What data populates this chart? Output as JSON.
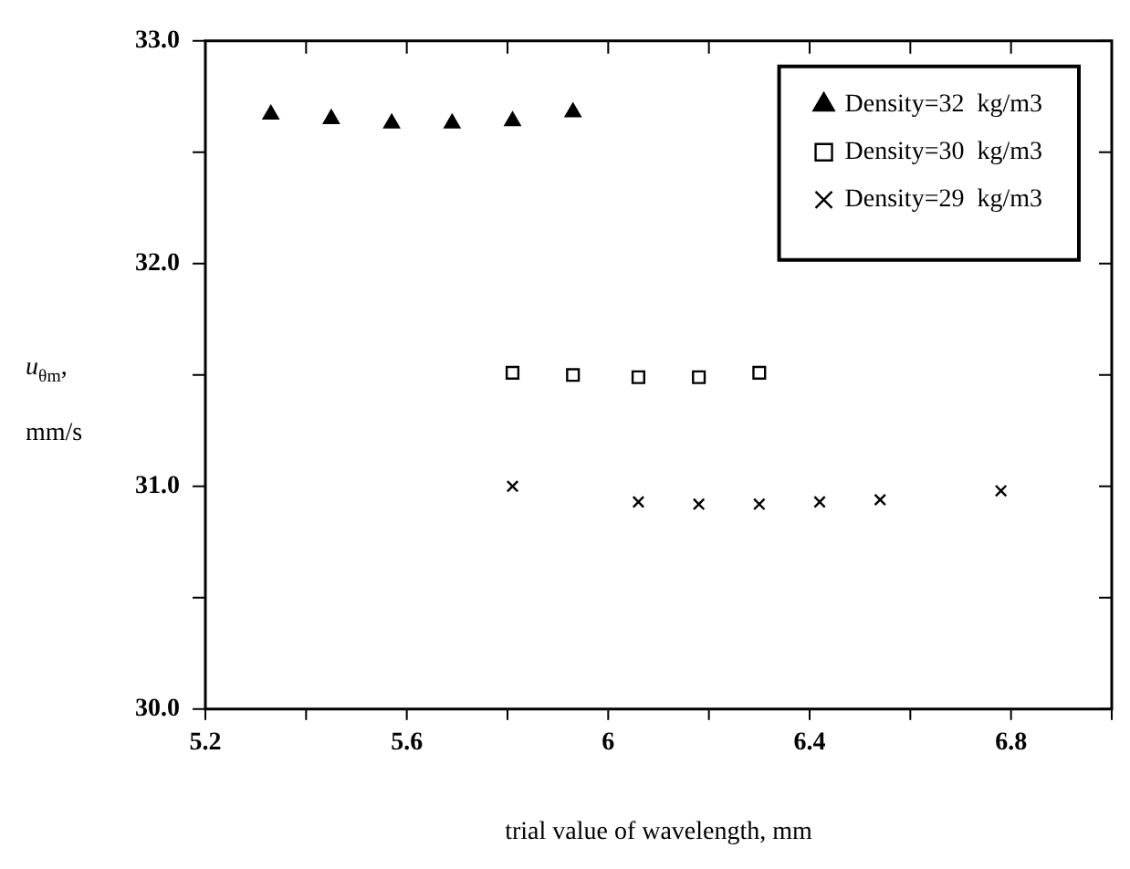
{
  "chart_data": {
    "type": "scatter",
    "xlabel": "trial value of wavelength, mm",
    "ylabel": "u$_{θm}$, mm/s",
    "xlim": [
      5.2,
      7.0
    ],
    "ylim": [
      30.0,
      33.0
    ],
    "xticks": [
      5.2,
      {
        "value": 5.4,
        "label": null
      },
      5.6,
      {
        "value": 5.8,
        "label": null
      },
      6,
      {
        "value": 6.2,
        "label": null
      },
      6.4,
      {
        "value": 6.6,
        "label": null
      },
      6.8,
      {
        "value": 7.0,
        "label": null
      }
    ],
    "yticks": [
      {
        "value": 30,
        "label": "30.0"
      },
      {
        "value": 30.5,
        "label": null
      },
      {
        "value": 31,
        "label": "31.0"
      },
      {
        "value": 31.5,
        "label": null
      },
      {
        "value": 32,
        "label": "32.0"
      },
      {
        "value": 32.5,
        "label": null
      },
      {
        "value": 33,
        "label": "33.0"
      }
    ],
    "grid": false,
    "legend": "top right",
    "series": [
      {
        "name": "Density=32  kg/m3",
        "color": "#000000",
        "marker": "triangle",
        "x": [
          5.33,
          5.45,
          5.57,
          5.69,
          5.81,
          5.93
        ],
        "values": [
          32.67,
          32.65,
          32.63,
          32.63,
          32.64,
          32.68
        ]
      },
      {
        "name": "Density=30  kg/m3",
        "color": "#000000",
        "marker": "square",
        "x": [
          5.81,
          5.93,
          6.06,
          6.18,
          6.3
        ],
        "values": [
          31.51,
          31.5,
          31.49,
          31.49,
          31.51
        ]
      },
      {
        "name": "Density=29  kg/m3",
        "color": "#000000",
        "marker": "cross",
        "x": [
          5.81,
          6.06,
          6.18,
          6.3,
          6.42,
          6.54,
          6.78
        ],
        "values": [
          31.0,
          30.93,
          30.92,
          30.92,
          30.93,
          30.94,
          30.98
        ]
      }
    ]
  }
}
